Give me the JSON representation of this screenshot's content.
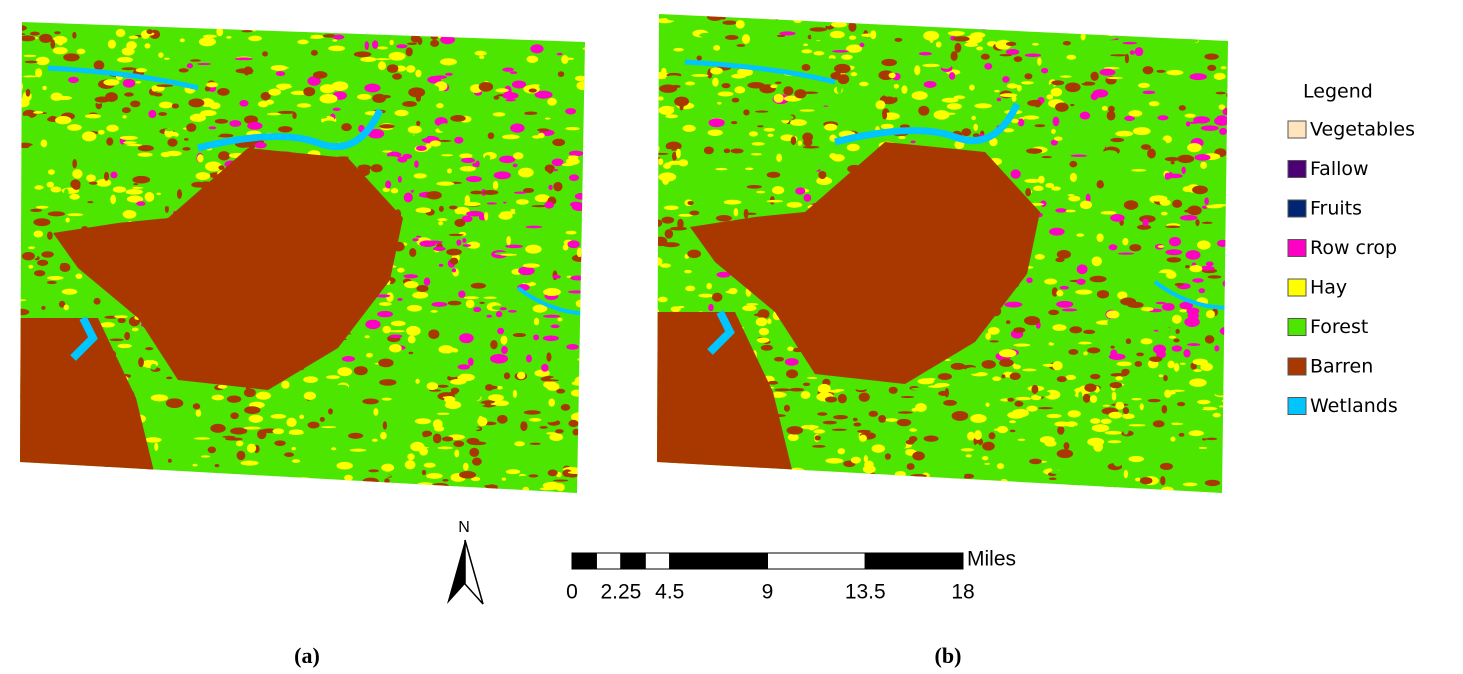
{
  "maps": [
    {
      "label": "(a)"
    },
    {
      "label": "(b)"
    }
  ],
  "legend": {
    "title": "Legend",
    "items": [
      {
        "label": "Vegetables",
        "color": "#ffe4be"
      },
      {
        "label": "Fallow",
        "color": "#4c0073"
      },
      {
        "label": "Fruits",
        "color": "#002673"
      },
      {
        "label": "Row crop",
        "color": "#ff00c5"
      },
      {
        "label": "Hay",
        "color": "#ffff00"
      },
      {
        "label": "Forest",
        "color": "#4ce600"
      },
      {
        "label": "Barren",
        "color": "#a83800"
      },
      {
        "label": "Wetlands",
        "color": "#00c5ff"
      }
    ]
  },
  "north_arrow": {
    "label": "N"
  },
  "scale_bar": {
    "ticks": [
      0,
      2.25,
      4.5,
      9,
      13.5,
      18
    ],
    "unit": "Miles"
  }
}
